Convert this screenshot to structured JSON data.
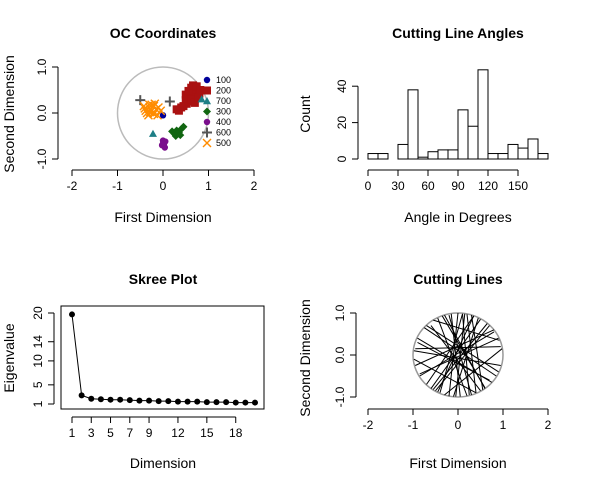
{
  "chart_data": [
    {
      "id": "oc",
      "type": "scatter",
      "title": "OC Coordinates",
      "xlabel": "First Dimension",
      "ylabel": "Second Dimension",
      "xlim": [
        -2,
        2
      ],
      "ylim": [
        -1,
        1
      ],
      "xticks": [
        "-2",
        "-1",
        "0",
        "1",
        "2"
      ],
      "yticks": [
        "-1.0",
        "0.0",
        "1.0"
      ],
      "circle": {
        "radius": 1,
        "color": "#bbbbbb"
      },
      "legend": {
        "position": "right",
        "entries": [
          "100",
          "200",
          "700",
          "300",
          "400",
          "600",
          "500"
        ]
      },
      "series": [
        {
          "name": "100",
          "color": "#000099",
          "symbol": "circle",
          "points": [
            [
              0.0,
              -0.05
            ]
          ]
        },
        {
          "name": "200",
          "color": "#aa1111",
          "symbol": "square",
          "points": [
            [
              0.5,
              0.4
            ],
            [
              0.55,
              0.35
            ],
            [
              0.6,
              0.42
            ],
            [
              0.65,
              0.5
            ],
            [
              0.7,
              0.3
            ],
            [
              0.75,
              0.45
            ],
            [
              0.52,
              0.2
            ],
            [
              0.58,
              0.25
            ],
            [
              0.62,
              0.55
            ],
            [
              0.68,
              0.4
            ],
            [
              0.72,
              0.52
            ],
            [
              0.8,
              0.42
            ],
            [
              0.5,
              0.28
            ],
            [
              0.56,
              0.48
            ],
            [
              0.4,
              0.12
            ],
            [
              0.35,
              0.05
            ],
            [
              0.3,
              0.08
            ],
            [
              0.45,
              0.15
            ],
            [
              0.62,
              0.3
            ],
            [
              0.7,
              0.22
            ],
            [
              0.78,
              0.33
            ],
            [
              0.66,
              0.6
            ],
            [
              0.74,
              0.58
            ],
            [
              0.82,
              0.5
            ]
          ]
        },
        {
          "name": "700",
          "color": "#1e7f86",
          "symbol": "triangle",
          "points": [
            [
              0.85,
              0.3
            ],
            [
              -0.22,
              -0.45
            ]
          ]
        },
        {
          "name": "300",
          "color": "#116611",
          "symbol": "diamond",
          "points": [
            [
              0.2,
              -0.4
            ],
            [
              0.25,
              -0.45
            ],
            [
              0.3,
              -0.38
            ],
            [
              0.35,
              -0.42
            ],
            [
              0.4,
              -0.35
            ],
            [
              0.45,
              -0.3
            ],
            [
              0.28,
              -0.5
            ],
            [
              0.38,
              -0.48
            ]
          ]
        },
        {
          "name": "400",
          "color": "#7a0f8c",
          "symbol": "circle",
          "points": [
            [
              0.0,
              -0.6
            ],
            [
              0.02,
              -0.68
            ],
            [
              0.05,
              -0.62
            ],
            [
              -0.02,
              -0.7
            ],
            [
              0.04,
              -0.75
            ],
            [
              0.0,
              -0.66
            ]
          ]
        },
        {
          "name": "600",
          "color": "#555555",
          "symbol": "plus",
          "points": [
            [
              -0.5,
              0.28
            ],
            [
              0.15,
              0.25
            ]
          ]
        },
        {
          "name": "500",
          "color": "#ff8c00",
          "symbol": "cross",
          "points": [
            [
              -0.4,
              0.1
            ],
            [
              -0.35,
              0.0
            ],
            [
              -0.3,
              0.12
            ],
            [
              -0.25,
              0.05
            ],
            [
              -0.2,
              0.15
            ],
            [
              -0.32,
              -0.05
            ],
            [
              -0.28,
              0.02
            ],
            [
              -0.22,
              0.0
            ],
            [
              -0.38,
              0.05
            ],
            [
              -0.15,
              0.08
            ],
            [
              -0.1,
              0.12
            ],
            [
              -0.18,
              0.2
            ],
            [
              -0.25,
              0.18
            ],
            [
              -0.05,
              0.05
            ],
            [
              -0.12,
              -0.05
            ],
            [
              -0.3,
              0.18
            ],
            [
              -0.42,
              0.15
            ],
            [
              -0.2,
              -0.02
            ]
          ]
        }
      ]
    },
    {
      "id": "angles",
      "type": "bar",
      "title": "Cutting Line Angles",
      "xlabel": "Angle in Degrees",
      "ylabel": "Count",
      "xlim": [
        0,
        180
      ],
      "ylim": [
        0,
        50
      ],
      "xticks": [
        "0",
        "30",
        "60",
        "90",
        "120",
        "150"
      ],
      "yticks": [
        "0",
        "20",
        "40"
      ],
      "bin_width": 10,
      "bin_starts": [
        0,
        10,
        20,
        30,
        40,
        50,
        60,
        70,
        80,
        90,
        100,
        110,
        120,
        130,
        140,
        150,
        160,
        170
      ],
      "values": [
        3,
        3,
        0,
        8,
        38,
        1,
        4,
        5,
        5,
        27,
        18,
        49,
        3,
        3,
        8,
        6,
        11,
        3
      ]
    },
    {
      "id": "skree",
      "type": "line",
      "title": "Skree Plot",
      "xlabel": "Dimension",
      "ylabel": "Eigenvalue",
      "xlim": [
        1,
        20
      ],
      "ylim": [
        0,
        21
      ],
      "xticks": [
        "1",
        "3",
        "5",
        "7",
        "9",
        "12",
        "15",
        "18"
      ],
      "yticks": [
        "1",
        "5",
        "10",
        "14",
        "20"
      ],
      "x": [
        1,
        2,
        3,
        4,
        5,
        6,
        7,
        8,
        9,
        10,
        11,
        12,
        13,
        14,
        15,
        16,
        17,
        18,
        19,
        20
      ],
      "values": [
        19.7,
        2.8,
        2.1,
        2.0,
        1.9,
        1.9,
        1.8,
        1.7,
        1.7,
        1.6,
        1.6,
        1.5,
        1.5,
        1.5,
        1.4,
        1.4,
        1.4,
        1.3,
        1.3,
        1.3
      ]
    },
    {
      "id": "cutlines",
      "type": "line",
      "title": "Cutting Lines",
      "xlabel": "First Dimension",
      "ylabel": "Second Dimension",
      "xlim": [
        -2,
        2
      ],
      "ylim": [
        -1,
        1
      ],
      "xticks": [
        "-2",
        "-1",
        "0",
        "1",
        "2"
      ],
      "yticks": [
        "-1.0",
        "0.0",
        "1.0"
      ],
      "circle": {
        "radius": 1,
        "color": "#999999"
      },
      "segments": [
        [
          [
            -0.9,
            0.3
          ],
          [
            0.7,
            -0.6
          ]
        ],
        [
          [
            -0.6,
            0.7
          ],
          [
            0.5,
            -0.85
          ]
        ],
        [
          [
            -0.2,
            0.95
          ],
          [
            0.3,
            -0.95
          ]
        ],
        [
          [
            0.1,
            0.98
          ],
          [
            -0.4,
            -0.9
          ]
        ],
        [
          [
            0.5,
            0.85
          ],
          [
            -0.6,
            -0.8
          ]
        ],
        [
          [
            0.8,
            0.55
          ],
          [
            -0.85,
            -0.5
          ]
        ],
        [
          [
            0.95,
            0.2
          ],
          [
            -0.95,
            0.15
          ]
        ],
        [
          [
            0.9,
            -0.4
          ],
          [
            -0.7,
            0.7
          ]
        ],
        [
          [
            0.6,
            -0.8
          ],
          [
            -0.3,
            0.95
          ]
        ],
        [
          [
            0.25,
            -0.95
          ],
          [
            0.1,
            0.98
          ]
        ],
        [
          [
            -0.1,
            -0.99
          ],
          [
            0.45,
            0.88
          ]
        ],
        [
          [
            -0.5,
            -0.85
          ],
          [
            0.7,
            0.7
          ]
        ],
        [
          [
            -0.85,
            -0.45
          ],
          [
            0.9,
            0.4
          ]
        ],
        [
          [
            -0.98,
            0.1
          ],
          [
            0.95,
            -0.25
          ]
        ],
        [
          [
            -0.75,
            0.65
          ],
          [
            0.85,
            -0.5
          ]
        ],
        [
          [
            -0.35,
            0.93
          ],
          [
            0.6,
            -0.78
          ]
        ],
        [
          [
            0.0,
            1.0
          ],
          [
            -0.2,
            -0.98
          ]
        ],
        [
          [
            0.35,
            0.93
          ],
          [
            -0.45,
            -0.88
          ]
        ],
        [
          [
            0.65,
            0.75
          ],
          [
            -0.55,
            -0.82
          ]
        ],
        [
          [
            -0.45,
            0.88
          ],
          [
            0.2,
            -0.97
          ]
        ],
        [
          [
            -0.95,
            -0.25
          ],
          [
            0.8,
            0.6
          ]
        ],
        [
          [
            0.3,
            0.95
          ],
          [
            0.55,
            -0.83
          ]
        ],
        [
          [
            -0.7,
            -0.7
          ],
          [
            0.35,
            0.93
          ]
        ],
        [
          [
            0.75,
            -0.65
          ],
          [
            -0.9,
            0.4
          ]
        ],
        [
          [
            -0.15,
            0.98
          ],
          [
            0.05,
            -0.99
          ]
        ],
        [
          [
            0.15,
            0.98
          ],
          [
            -0.05,
            -0.99
          ]
        ],
        [
          [
            -0.3,
            -0.95
          ],
          [
            0.98,
            0.15
          ]
        ],
        [
          [
            0.4,
            -0.9
          ],
          [
            -0.98,
            -0.1
          ]
        ],
        [
          [
            -0.55,
            0.83
          ],
          [
            0.92,
            0.35
          ]
        ],
        [
          [
            0.2,
            0.97
          ],
          [
            0.4,
            -0.9
          ]
        ]
      ]
    }
  ]
}
